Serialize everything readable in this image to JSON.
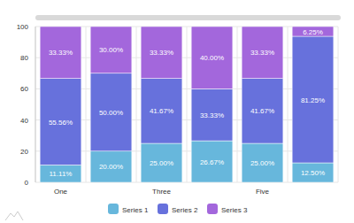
{
  "chart_data": {
    "type": "bar",
    "stacked": true,
    "data_labels": true,
    "grid": true,
    "legend": "bottom",
    "categories": [
      "One",
      null,
      "Three",
      null,
      "Five",
      null
    ],
    "ylim": [
      0,
      100
    ],
    "yticks": [
      0,
      20,
      40,
      60,
      80,
      100
    ],
    "series": [
      {
        "name": "Series 1",
        "color": "#67b7dc",
        "values": [
          11.11,
          20.0,
          25.0,
          26.67,
          25.0,
          12.5
        ],
        "value_labels": [
          "11.11%",
          "20.00%",
          "25.00%",
          "26.67%",
          "25.00%",
          "12.50%"
        ]
      },
      {
        "name": "Series 2",
        "color": "#6771dc",
        "values": [
          55.56,
          50.0,
          41.67,
          33.33,
          41.67,
          81.25
        ],
        "value_labels": [
          "55.56%",
          "50.00%",
          "41.67%",
          "33.33%",
          "41.67%",
          "81.25%"
        ]
      },
      {
        "name": "Series 3",
        "color": "#a367dc",
        "values": [
          33.33,
          30.0,
          33.33,
          40.0,
          33.33,
          6.25
        ],
        "value_labels": [
          "33.33%",
          "30.00%",
          "33.33%",
          "40.00%",
          "33.33%",
          "6.25%"
        ]
      }
    ]
  }
}
